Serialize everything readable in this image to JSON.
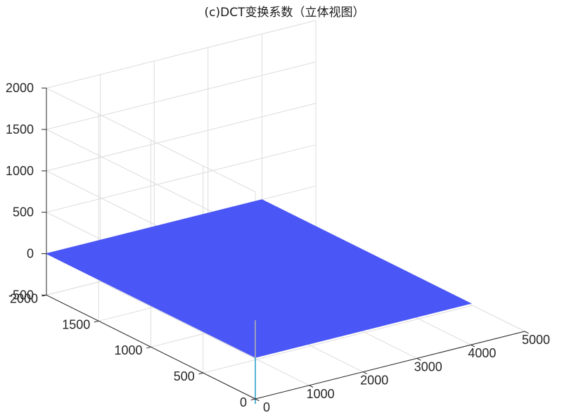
{
  "chart_data": {
    "type": "surface",
    "title": "(c)DCT变换系数（立体视图）",
    "xlabel": "",
    "ylabel": "",
    "zlabel": "",
    "x_range": [
      0,
      5000
    ],
    "y_range": [
      0,
      2000
    ],
    "z_range": [
      -500,
      2000
    ],
    "x_ticks": [
      "0",
      "1000",
      "2000",
      "3000",
      "4000",
      "5000"
    ],
    "y_ticks": [
      "0",
      "500",
      "1000",
      "1500",
      "2000"
    ],
    "z_ticks": [
      "-500",
      "0",
      "500",
      "1000",
      "1500",
      "2000"
    ],
    "surface_extent": {
      "x": [
        0,
        4000
      ],
      "y": [
        0,
        2000
      ]
    },
    "baseline_z": 0,
    "spikes": [
      {
        "x": 0,
        "y": 0,
        "z": 450
      },
      {
        "x": 0,
        "y": 0,
        "z": -560
      }
    ],
    "grid": true,
    "view": "3d default azimuth -37.5, elevation 30",
    "surface_color": "#4a56f5",
    "spike_color_top": "#b0b0b0",
    "spike_color_bottom": "#2aa0c8",
    "grid_color": "#dcdcdc",
    "axis_color": "#262626"
  }
}
